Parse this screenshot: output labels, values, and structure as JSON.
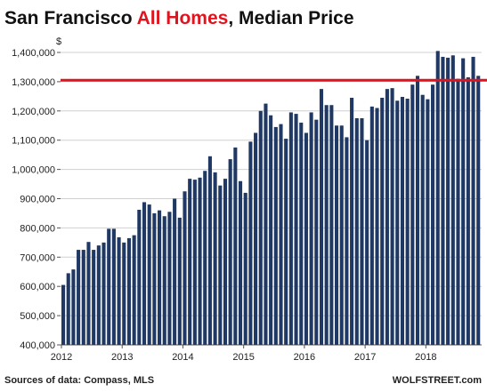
{
  "chart_data": {
    "type": "bar",
    "title": {
      "prefix": "San Francisco ",
      "highlight": "All Homes",
      "suffix": ", Median Price"
    },
    "ylabel": "$",
    "ylim": [
      400000,
      1400000
    ],
    "y_ticks": [
      "400,000",
      "500,000",
      "600,000",
      "700,000",
      "800,000",
      "900,000",
      "1,000,000",
      "1,100,000",
      "1,200,000",
      "1,300,000",
      "1,400,000"
    ],
    "x_ticks": [
      "2012",
      "2013",
      "2014",
      "2015",
      "2016",
      "2017",
      "2018"
    ],
    "x_start_year": 2012,
    "months_per_year": 12,
    "values": [
      605000,
      645000,
      658000,
      725000,
      725000,
      752000,
      725000,
      740000,
      750000,
      797000,
      797000,
      768000,
      750000,
      765000,
      775000,
      862000,
      888000,
      880000,
      850000,
      860000,
      840000,
      855000,
      900000,
      835000,
      925000,
      968000,
      965000,
      972000,
      995000,
      1045000,
      990000,
      945000,
      968000,
      1035000,
      1075000,
      960000,
      920000,
      1095000,
      1125000,
      1200000,
      1225000,
      1185000,
      1145000,
      1155000,
      1105000,
      1195000,
      1190000,
      1160000,
      1125000,
      1195000,
      1170000,
      1275000,
      1220000,
      1220000,
      1150000,
      1150000,
      1110000,
      1245000,
      1175000,
      1175000,
      1100000,
      1215000,
      1210000,
      1245000,
      1275000,
      1278000,
      1235000,
      1248000,
      1242000,
      1290000,
      1320000,
      1255000,
      1240000,
      1290000,
      1405000,
      1385000,
      1382000,
      1390000,
      1310000,
      1380000,
      1315000,
      1385000,
      1320000
    ],
    "reference_line": {
      "value": 1305000,
      "color": "#e0141e"
    },
    "bar_color": "#1f3864",
    "title_highlight_color": "#e0141e",
    "grid": true,
    "legend": "none"
  },
  "footer": {
    "source": "Sources of data: Compass, MLS",
    "brand": "WOLFSTREET.com"
  }
}
